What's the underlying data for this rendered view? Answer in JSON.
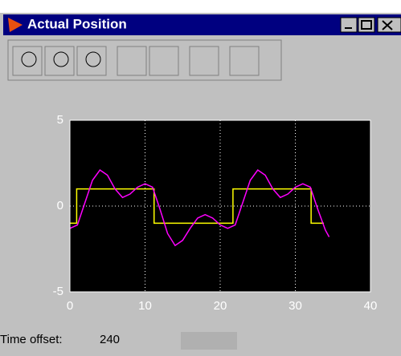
{
  "window": {
    "title": "Actual Position"
  },
  "chart_data": {
    "type": "line",
    "xlim": [
      0,
      40
    ],
    "xticks": [
      0,
      10,
      20,
      30,
      40
    ],
    "ylim": [
      -5,
      5
    ],
    "yticks": [
      -5,
      0,
      5
    ],
    "grid": true,
    "series": [
      {
        "color": "#ffff00",
        "x": [
          0,
          0.9,
          0.9,
          11.2,
          11.2,
          21.7,
          21.7,
          32.1,
          32.1,
          33.8
        ],
        "values": [
          -1,
          -1,
          1,
          1,
          -1,
          -1,
          1,
          1,
          -1,
          -1
        ]
      },
      {
        "color": "#ff00ff",
        "x": [
          0,
          1,
          2,
          3,
          4,
          5,
          6,
          7,
          8,
          9,
          10,
          11,
          12,
          13,
          14,
          15,
          16,
          17,
          18,
          19,
          20,
          21,
          22,
          23,
          24,
          25,
          26,
          27,
          28,
          29,
          30,
          31,
          32,
          33,
          34,
          34.5
        ],
        "values": [
          -1.3,
          -1.1,
          0.2,
          1.5,
          2.1,
          1.8,
          1.0,
          0.5,
          0.7,
          1.1,
          1.3,
          1.1,
          -0.2,
          -1.6,
          -2.3,
          -2.0,
          -1.3,
          -0.7,
          -0.5,
          -0.7,
          -1.1,
          -1.3,
          -1.1,
          0.2,
          1.5,
          2.1,
          1.8,
          1.0,
          0.5,
          0.7,
          1.1,
          1.3,
          1.1,
          -0.2,
          -1.4,
          -1.8
        ]
      }
    ]
  },
  "status": {
    "label": "Time offset:",
    "value": 240
  }
}
